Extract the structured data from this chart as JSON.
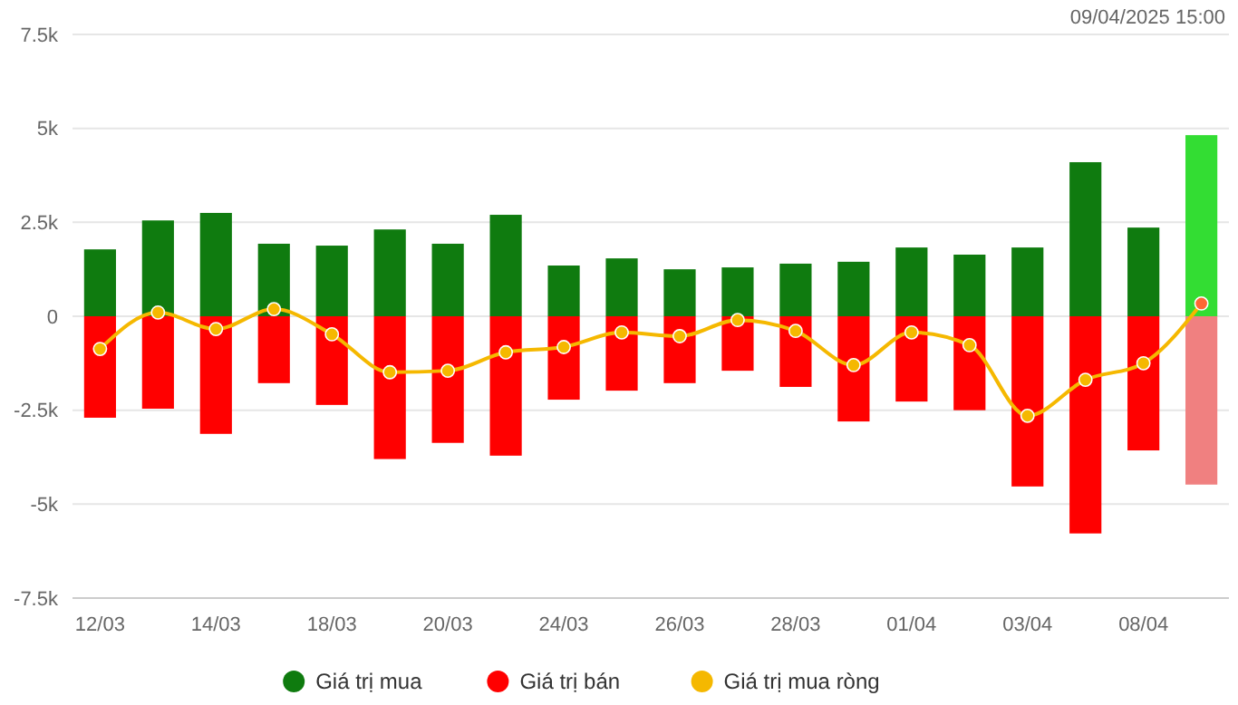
{
  "chart_data": {
    "type": "bar",
    "annotations": [
      "09/04/2025 15:00"
    ],
    "categories": [
      "12/03",
      null,
      "14/03",
      null,
      "18/03",
      null,
      "20/03",
      null,
      "24/03",
      null,
      "26/03",
      null,
      "28/03",
      null,
      "01/04",
      null,
      "03/04",
      null,
      "08/04",
      null
    ],
    "series": [
      {
        "name": "Giá trị mua",
        "color": "#0f7b0f",
        "colors": [
          "#0f7b0f",
          "#0f7b0f",
          "#0f7b0f",
          "#0f7b0f",
          "#0f7b0f",
          "#0f7b0f",
          "#0f7b0f",
          "#0f7b0f",
          "#0f7b0f",
          "#0f7b0f",
          "#0f7b0f",
          "#0f7b0f",
          "#0f7b0f",
          "#0f7b0f",
          "#0f7b0f",
          "#0f7b0f",
          "#0f7b0f",
          "#0f7b0f",
          "#0f7b0f",
          "#33dd33"
        ],
        "values": [
          1780,
          2550,
          2750,
          1930,
          1880,
          2310,
          1930,
          2700,
          1350,
          1540,
          1250,
          1300,
          1400,
          1450,
          1830,
          1640,
          1830,
          4100,
          2360,
          4820
        ]
      },
      {
        "name": "Giá trị bán",
        "color": "#ff0000",
        "colors": [
          "#ff0000",
          "#ff0000",
          "#ff0000",
          "#ff0000",
          "#ff0000",
          "#ff0000",
          "#ff0000",
          "#ff0000",
          "#ff0000",
          "#ff0000",
          "#ff0000",
          "#ff0000",
          "#ff0000",
          "#ff0000",
          "#ff0000",
          "#ff0000",
          "#ff0000",
          "#ff0000",
          "#ff0000",
          "#f08080"
        ],
        "values": [
          -2700,
          -2460,
          -3130,
          -1780,
          -2360,
          -3800,
          -3370,
          -3710,
          -2220,
          -1980,
          -1780,
          -1450,
          -1880,
          -2800,
          -2270,
          -2500,
          -4530,
          -5780,
          -3570,
          -4480
        ]
      },
      {
        "name": "Giá trị mua ròng",
        "type": "line",
        "color": "#f5b800",
        "colors": [
          "#f5b800",
          "#f5b800",
          "#f5b800",
          "#f5b800",
          "#f5b800",
          "#f5b800",
          "#f5b800",
          "#f5b800",
          "#f5b800",
          "#f5b800",
          "#f5b800",
          "#f5b800",
          "#f5b800",
          "#f5b800",
          "#f5b800",
          "#f5b800",
          "#f5b800",
          "#f5b800",
          "#f5b800",
          "#ff6633"
        ],
        "values": [
          -870,
          100,
          -340,
          190,
          -480,
          -1490,
          -1450,
          -960,
          -820,
          -430,
          -530,
          -100,
          -390,
          -1300,
          -430,
          -770,
          -2650,
          -1690,
          -1250,
          340
        ]
      }
    ],
    "ylim": [
      -7500,
      7500
    ],
    "yticks": [
      {
        "value": -7500,
        "label": "-7.5k"
      },
      {
        "value": -5000,
        "label": "-5k"
      },
      {
        "value": -2500,
        "label": "-2.5k"
      },
      0,
      {
        "value": 2500,
        "label": "2.5k"
      },
      {
        "value": 5000,
        "label": "5k"
      },
      {
        "value": 7500,
        "label": "7.5k"
      }
    ],
    "stacked": true,
    "grid": "y",
    "legend": "bottom",
    "marker": "circle"
  }
}
